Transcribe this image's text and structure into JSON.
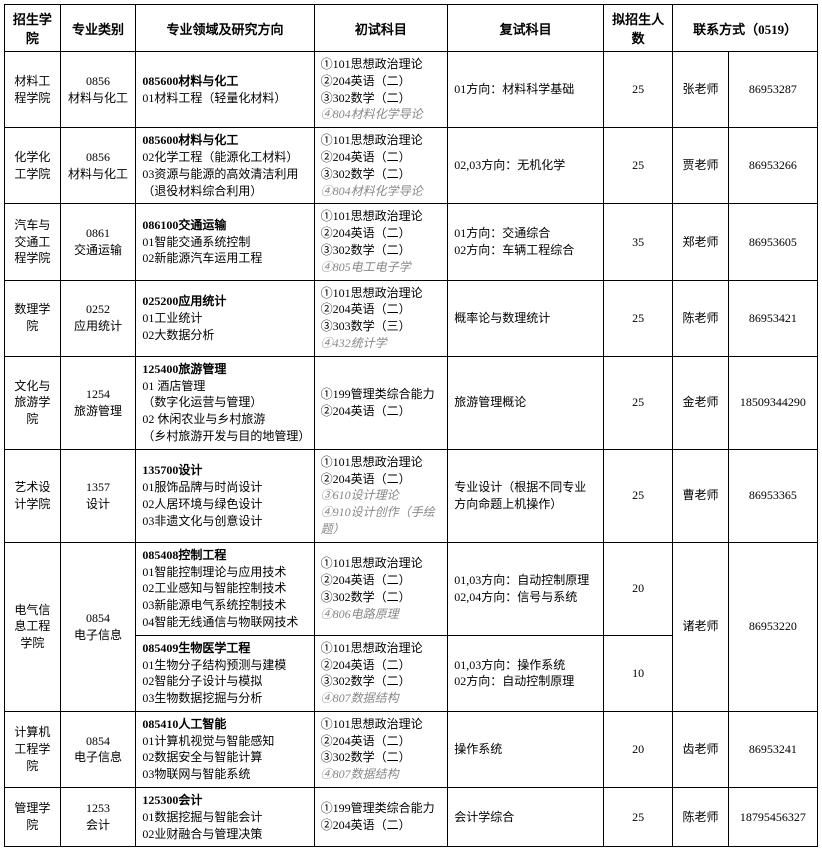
{
  "headers": [
    "招生学院",
    "专业类别",
    "专业领域及研究方向",
    "初试科目",
    "复试科目",
    "拟招生人数",
    "联系方式（0519）",
    ""
  ],
  "rows": [
    {
      "col0": "材料工程学院",
      "col1": "0856\n材料与化工",
      "col2b": "085600材料与化工",
      "col2": "01材料工程（轻量化材料）",
      "col3": "①101思想政治理论\n②204英语（二）\n③302数学（二）",
      "col3i": "④804材料化学导论",
      "col4": "01方向：材料科学基础",
      "col5": "25",
      "col6": "张老师",
      "col7": "86953287"
    },
    {
      "col0": "化学化工学院",
      "col1": "0856\n材料与化工",
      "col2b": "085600材料与化工",
      "col2": "02化学工程（能源化工材料）\n03资源与能源的高效清洁利用（退役材料综合利用）",
      "col3": "①101思想政治理论\n②204英语（二）\n③302数学（二）",
      "col3i": "④804材料化学导论",
      "col4": "02,03方向：无机化学",
      "col5": "25",
      "col6": "贾老师",
      "col7": "86953266"
    },
    {
      "col0": "汽车与交通工程学院",
      "col1": "0861\n交通运输",
      "col2b": "086100交通运输",
      "col2": "01智能交通系统控制\n02新能源汽车运用工程",
      "col3": "①101思想政治理论\n②204英语（二）\n③302数学（二）",
      "col3i": "④805电工电子学",
      "col4": "01方向：交通综合\n02方向：车辆工程综合",
      "col5": "35",
      "col6": "郑老师",
      "col7": "86953605"
    },
    {
      "col0": "数理学院",
      "col1": "0252\n应用统计",
      "col2b": "025200应用统计",
      "col2": "01工业统计\n02大数据分析",
      "col3": "①101思想政治理论\n②204英语（二）\n③303数学（三）",
      "col3i": "④432统计学",
      "col4": "概率论与数理统计",
      "col5": "25",
      "col6": "陈老师",
      "col7": "86953421"
    },
    {
      "col0": "文化与旅游学院",
      "col1": "1254\n旅游管理",
      "col2b": "125400旅游管理",
      "col2": "01 酒店管理\n（数字化运营与管理）\n02 休闲农业与乡村旅游\n（乡村旅游开发与目的地管理）",
      "col3": "①199管理类综合能力\n②204英语（二）",
      "col3i": "",
      "col4": "旅游管理概论",
      "col5": "25",
      "col6": "金老师",
      "col7": "18509344290"
    },
    {
      "col0": "艺术设计学院",
      "col1": "1357\n设计",
      "col2b": "135700设计",
      "col2": "01服饰品牌与时尚设计\n02人居环境与绿色设计\n03非遗文化与创意设计",
      "col3": "①101思想政治理论\n②204英语（二）",
      "col3i": "③610设计理论\n④910设计创作（手绘题）",
      "col4": "专业设计（根据不同专业方向命题上机操作）",
      "col5": "25",
      "col6": "曹老师",
      "col7": "86953365"
    }
  ],
  "eiRows": [
    {
      "col2b": "085408控制工程",
      "col2": "01智能控制理论与应用技术\n02工业感知与智能控制技术\n03新能源电气系统控制技术\n04智能无线通信与物联网技术",
      "col3": "①101思想政治理论\n②204英语（二）\n③302数学（二）",
      "col3i": "④806电路原理",
      "col4": "01,03方向：自动控制原理\n02,04方向：信号与系统",
      "col5": "20"
    },
    {
      "col2b": "085409生物医学工程",
      "col2": "01生物分子结构预测与建模\n02智能分子设计与模拟\n03生物数据挖掘与分析",
      "col3": "①101思想政治理论\n②204英语（二）\n③302数学（二）",
      "col3i": "④807数据结构",
      "col4": "01,03方向：操作系统\n02方向：自动控制原理",
      "col5": "10"
    }
  ],
  "ei": {
    "col0": "电气信息工程学院",
    "col1": "0854\n电子信息",
    "col6": "诸老师",
    "col7": "86953220"
  },
  "csRow": {
    "col0": "计算机工程学院",
    "col1": "0854\n电子信息",
    "col2b": "085410人工智能",
    "col2": "01计算机视觉与智能感知\n02数据安全与智能计算\n03物联网与智能系统",
    "col3": "①101思想政治理论\n②204英语（二）\n③302数学（二）",
    "col3i": "④807数据结构",
    "col4": "操作系统",
    "col5": "20",
    "col6": "齿老师",
    "col7": "86953241"
  },
  "mgRow": {
    "col0": "管理学院",
    "col1": "1253\n会计",
    "col2b": "125300会计",
    "col2": "01数据挖掘与智能会计\n02业财融合与管理决策",
    "col3": "①199管理类综合能力\n②204英语（二）",
    "col3i": "",
    "col4": "会计学综合",
    "col5": "25",
    "col6": "陈老师",
    "col7": "18795456327"
  }
}
